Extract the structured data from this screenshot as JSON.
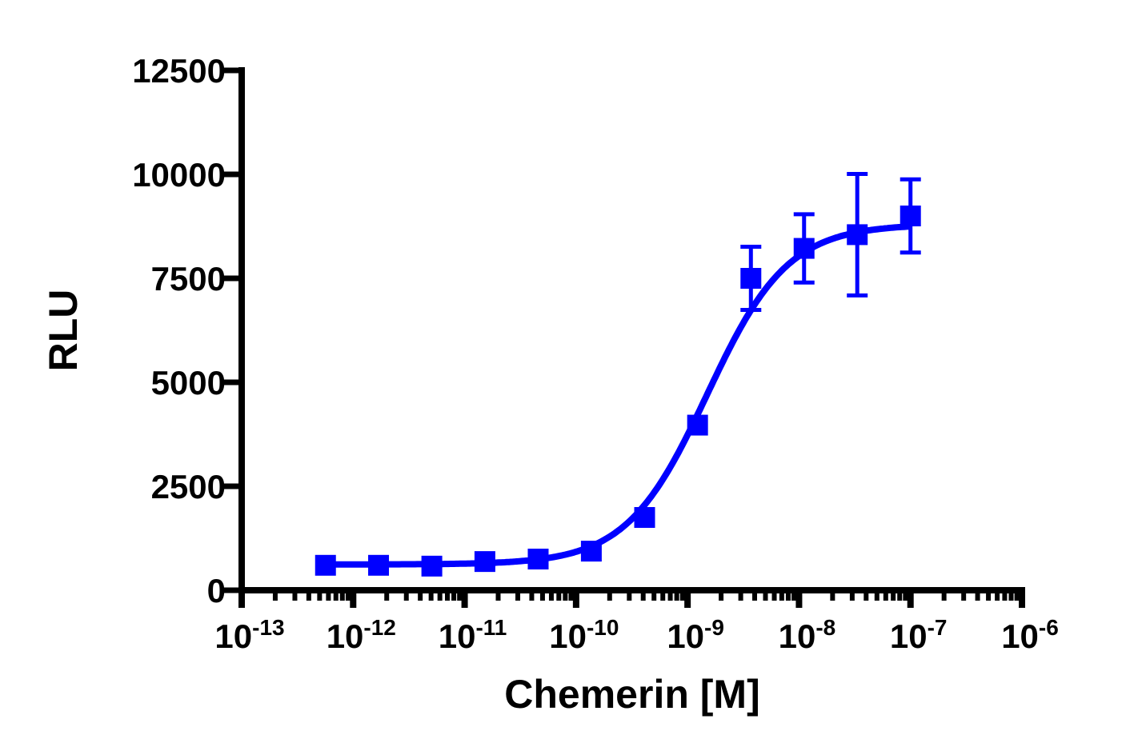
{
  "chart_data": {
    "type": "scatter",
    "title": "",
    "xlabel": "Chemerin [M]",
    "ylabel": "RLU",
    "x_scale": "log",
    "xlim": [
      1e-13,
      1e-06
    ],
    "ylim": [
      0,
      12500
    ],
    "grid": false,
    "x_ticks": [
      {
        "base": "10",
        "exp": "-13",
        "value": 1e-13
      },
      {
        "base": "10",
        "exp": "-12",
        "value": 1e-12
      },
      {
        "base": "10",
        "exp": "-11",
        "value": 1e-11
      },
      {
        "base": "10",
        "exp": "-10",
        "value": 1e-10
      },
      {
        "base": "10",
        "exp": "-9",
        "value": 1e-09
      },
      {
        "base": "10",
        "exp": "-8",
        "value": 1e-08
      },
      {
        "base": "10",
        "exp": "-7",
        "value": 1e-07
      },
      {
        "base": "10",
        "exp": "-6",
        "value": 1e-06
      }
    ],
    "y_ticks": [
      "0",
      "2500",
      "5000",
      "7500",
      "10000",
      "12500"
    ],
    "color": "#0000ff",
    "marker": "square",
    "series": [
      {
        "x": [
          5.65e-13,
          1.69e-12,
          5.08e-12,
          1.52e-11,
          4.57e-11,
          1.37e-10,
          4.12e-10,
          1.23e-09,
          3.7e-09,
          1.11e-08,
          3.33e-08,
          1e-07
        ],
        "y": [
          600,
          600,
          580,
          690,
          750,
          940,
          1750,
          3970,
          7500,
          8220,
          8550,
          9000
        ],
        "error": [
          0,
          0,
          0,
          0,
          0,
          0,
          0,
          0,
          760,
          820,
          1460,
          880
        ]
      }
    ],
    "fit_curve": {
      "model": "sigmoidal dose-response",
      "bottom": 620,
      "top": 8800,
      "ec50": 1.5e-09,
      "hill_slope": 1.2
    }
  }
}
